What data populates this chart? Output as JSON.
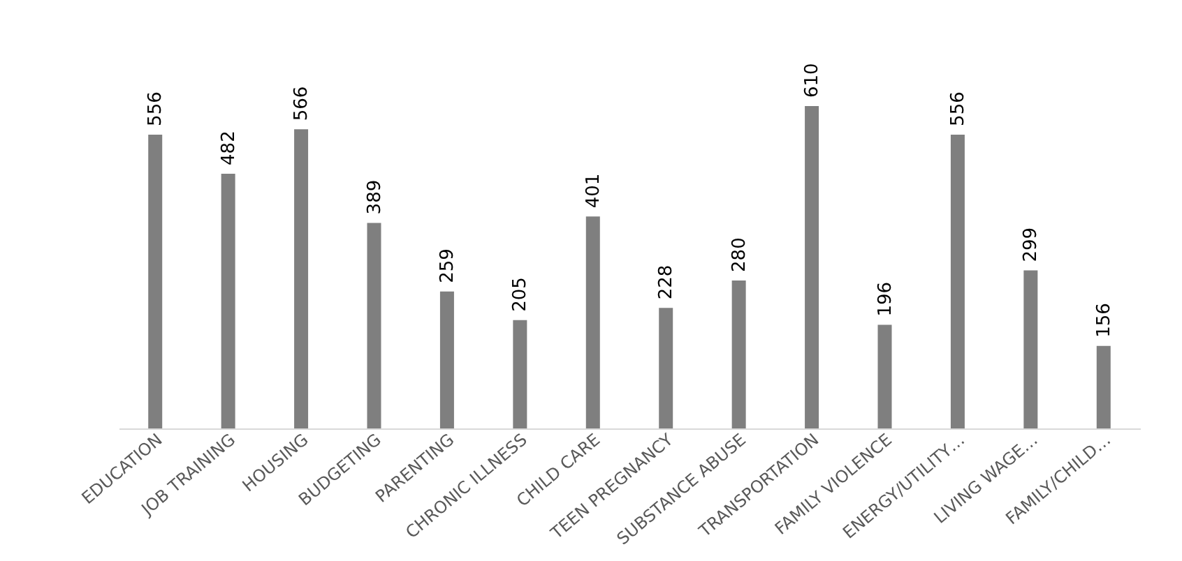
{
  "chart_data": {
    "type": "bar",
    "categories": [
      "EDUCATION",
      "JOB TRAINING",
      "HOUSING",
      "BUDGETING",
      "PARENTING",
      "CHRONIC ILLNESS",
      "CHILD CARE",
      "TEEN PREGNANCY",
      "SUBSTANCE ABUSE",
      "TRANSPORTATION",
      "FAMILY VIOLENCE",
      "ENERGY/UTILITY…",
      "LIVING WAGE…",
      "FAMILY/CHILD…"
    ],
    "values": [
      556,
      482,
      566,
      389,
      259,
      205,
      401,
      228,
      280,
      610,
      196,
      556,
      299,
      156
    ],
    "color": "#7f7f7f",
    "data_labels": true,
    "tick_labels": "x"
  }
}
